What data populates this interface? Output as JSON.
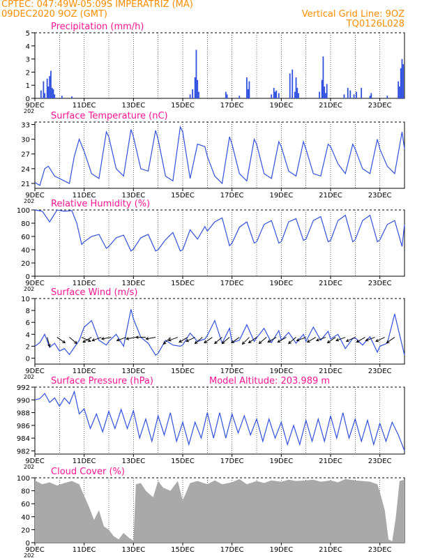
{
  "header": {
    "line1_left": "CPTEC:  047:49W-05:09S  IMPERATRIZ (MA)",
    "line2_left": "09DEC2020 9OZ (GMT)",
    "line1_right": "Vertical Grid Line: 9OZ",
    "line2_right": "TQ0126L028"
  },
  "colors": {
    "header": "#ff8c00",
    "title": "#ff1493",
    "series": "#3050e0",
    "cloud": "#a9a9a9",
    "axis": "#000000",
    "grid": "#000000",
    "arrow": "#000000"
  },
  "x_axis": {
    "range_days": [
      9,
      24
    ],
    "tick_days": [
      9,
      11,
      13,
      15,
      17,
      19,
      21,
      23
    ],
    "tick_labels": [
      "9DEC",
      "11DEC",
      "13DEC",
      "15DEC",
      "17DEC",
      "19DEC",
      "21DEC",
      "23DEC"
    ],
    "partial_label": "202"
  },
  "chart_data": [
    {
      "type": "bar",
      "title": "Precipitation (mm/h)",
      "ylim": [
        0,
        5
      ],
      "yticks": [
        0,
        1,
        2,
        3,
        4,
        5
      ],
      "x": [
        9.25,
        9.35,
        9.4,
        9.5,
        9.55,
        9.6,
        9.65,
        9.7,
        9.75,
        9.8,
        10.1,
        10.5,
        15.3,
        15.4,
        15.5,
        15.55,
        15.6,
        15.65,
        16.75,
        16.8,
        17.3,
        17.6,
        17.65,
        17.7,
        18.6,
        18.7,
        18.75,
        18.8,
        18.9,
        19.35,
        19.45,
        19.55,
        19.6,
        19.65,
        19.7,
        20.55,
        20.65,
        20.7,
        20.75,
        20.8,
        20.85,
        21.55,
        21.7,
        21.8,
        21.95,
        22.05,
        22.25,
        22.6,
        22.65,
        23.3,
        23.75,
        23.8,
        23.85,
        23.9,
        23.95
      ],
      "values": [
        0.6,
        1.3,
        0.4,
        1.5,
        0.9,
        1.7,
        2.1,
        0.8,
        0.7,
        0.3,
        0.2,
        0.15,
        0.3,
        0.7,
        1.6,
        3.7,
        1.4,
        0.5,
        0.5,
        0.3,
        0.2,
        1.6,
        0.7,
        1.3,
        0.3,
        0.8,
        0.5,
        0.6,
        0.4,
        1.9,
        2.2,
        0.5,
        1.6,
        0.8,
        0.4,
        0.5,
        1.4,
        3.2,
        0.9,
        0.4,
        1.1,
        0.3,
        0.8,
        0.6,
        0.3,
        0.5,
        0.8,
        0.2,
        0.4,
        0.2,
        1.3,
        0.9,
        2.3,
        3.0,
        2.6
      ]
    },
    {
      "type": "line",
      "title": "Surface Temperature (nC)",
      "ylim": [
        20,
        33.5
      ],
      "yticks": [
        21,
        24,
        27,
        30,
        33
      ],
      "x": [
        9.0,
        9.2,
        9.4,
        9.55,
        9.8,
        10.0,
        10.2,
        10.4,
        10.6,
        10.8,
        11.0,
        11.3,
        11.6,
        11.9,
        12.0,
        12.3,
        12.6,
        12.9,
        13.0,
        13.3,
        13.6,
        13.9,
        14.0,
        14.3,
        14.6,
        14.9,
        15.0,
        15.3,
        15.6,
        15.9,
        16.0,
        16.3,
        16.6,
        16.9,
        17.0,
        17.3,
        17.6,
        17.9,
        18.0,
        18.3,
        18.6,
        18.9,
        19.0,
        19.3,
        19.6,
        19.9,
        20.0,
        20.3,
        20.6,
        20.9,
        21.0,
        21.3,
        21.6,
        21.9,
        22.0,
        22.3,
        22.6,
        22.9,
        23.0,
        23.3,
        23.6,
        23.9,
        24.0
      ],
      "values": [
        21.2,
        20.6,
        24.0,
        24.5,
        22.5,
        22.0,
        21.5,
        21.0,
        26.5,
        30.0,
        27.5,
        23.0,
        22.0,
        31.5,
        30.5,
        24.0,
        22.5,
        32.0,
        30.5,
        24.0,
        23.5,
        31.8,
        30.0,
        22.5,
        21.5,
        32.5,
        31.5,
        22.0,
        29.0,
        28.5,
        26.5,
        22.5,
        21.0,
        30.5,
        29.0,
        23.0,
        21.5,
        30.0,
        29.0,
        23.0,
        22.0,
        29.5,
        28.5,
        23.5,
        22.5,
        29.5,
        28.0,
        23.0,
        22.5,
        29.0,
        28.5,
        25.0,
        23.0,
        29.0,
        28.0,
        24.0,
        23.0,
        30.0,
        28.0,
        24.5,
        23.0,
        31.5,
        28.0
      ]
    },
    {
      "type": "line",
      "title": "Relative Humidity (%)",
      "ylim": [
        0,
        100
      ],
      "yticks": [
        0,
        20,
        40,
        60,
        80,
        100
      ],
      "x": [
        9.0,
        9.3,
        9.6,
        9.9,
        10.2,
        10.5,
        10.7,
        10.9,
        11.0,
        11.3,
        11.6,
        11.9,
        12.0,
        12.3,
        12.6,
        12.9,
        13.0,
        13.3,
        13.6,
        13.9,
        14.0,
        14.3,
        14.6,
        14.9,
        15.0,
        15.3,
        15.6,
        15.9,
        16.0,
        16.3,
        16.6,
        16.9,
        17.0,
        17.3,
        17.6,
        17.9,
        18.0,
        18.3,
        18.6,
        18.9,
        19.0,
        19.3,
        19.6,
        19.9,
        20.0,
        20.3,
        20.6,
        20.9,
        21.0,
        21.3,
        21.6,
        21.9,
        22.0,
        22.3,
        22.6,
        22.9,
        23.0,
        23.3,
        23.6,
        23.9,
        24.0
      ],
      "values": [
        100,
        98,
        82,
        100,
        98,
        99,
        80,
        48,
        52,
        60,
        63,
        42,
        45,
        58,
        62,
        38,
        41,
        58,
        63,
        38,
        40,
        55,
        66,
        38,
        40,
        70,
        56,
        75,
        68,
        82,
        88,
        46,
        50,
        74,
        82,
        50,
        52,
        78,
        84,
        50,
        52,
        82,
        87,
        54,
        56,
        84,
        90,
        52,
        54,
        84,
        92,
        52,
        55,
        84,
        92,
        52,
        55,
        78,
        84,
        45,
        78
      ]
    },
    {
      "type": "line",
      "title": "Surface Wind (m/s)",
      "ylim": [
        -1,
        10
      ],
      "yticks": [
        0,
        2,
        4,
        6,
        8,
        10
      ],
      "x": [
        9.0,
        9.2,
        9.4,
        9.6,
        9.8,
        10.0,
        10.2,
        10.4,
        10.6,
        10.8,
        11.0,
        11.3,
        11.6,
        11.9,
        12.0,
        12.3,
        12.6,
        12.9,
        13.0,
        13.3,
        13.6,
        13.9,
        14.0,
        14.3,
        14.6,
        14.9,
        15.0,
        15.3,
        15.6,
        15.9,
        16.0,
        16.3,
        16.6,
        16.9,
        17.0,
        17.3,
        17.6,
        17.9,
        18.0,
        18.3,
        18.6,
        18.9,
        19.0,
        19.3,
        19.6,
        19.9,
        20.0,
        20.3,
        20.6,
        20.9,
        21.0,
        21.3,
        21.6,
        21.9,
        22.0,
        22.3,
        22.6,
        22.9,
        23.0,
        23.3,
        23.6,
        23.9,
        24.0
      ],
      "values": [
        2.0,
        2.6,
        4.0,
        1.8,
        2.5,
        1.2,
        1.6,
        0.6,
        1.8,
        3.0,
        5.2,
        6.3,
        3.0,
        2.2,
        2.8,
        4.0,
        2.0,
        8.2,
        6.6,
        3.5,
        2.5,
        0.5,
        0.8,
        3.0,
        2.2,
        2.0,
        2.2,
        4.2,
        2.8,
        3.2,
        3.8,
        6.3,
        2.5,
        5.0,
        2.6,
        3.0,
        5.6,
        2.8,
        3.4,
        5.0,
        2.6,
        4.6,
        3.0,
        4.3,
        2.5,
        4.0,
        2.8,
        5.2,
        3.0,
        4.5,
        3.2,
        4.0,
        1.6,
        3.3,
        3.4,
        2.2,
        3.6,
        1.0,
        2.0,
        2.5,
        7.4,
        2.2,
        0.5
      ],
      "arrow_x": [
        9.5,
        9.9,
        10.4,
        10.9,
        11.3,
        11.7,
        12.1,
        12.7,
        13.1,
        13.5,
        13.9,
        14.5,
        14.8,
        15.2,
        15.5,
        15.8,
        16.2,
        16.6,
        16.9,
        17.3,
        17.7,
        18.0,
        18.4,
        18.8,
        19.2,
        19.6,
        20.0,
        20.4,
        20.8,
        21.2,
        21.6,
        22.0,
        22.4,
        22.8,
        23.2,
        23.6
      ],
      "arrow_dir_deg": [
        75,
        35,
        40,
        25,
        150,
        160,
        170,
        160,
        170,
        180,
        170,
        135,
        160,
        150,
        155,
        140,
        145,
        140,
        140,
        145,
        135,
        145,
        140,
        150,
        150,
        140,
        160,
        150,
        160,
        145,
        160,
        155,
        150,
        160,
        155,
        145
      ]
    },
    {
      "type": "line",
      "title": "Surface Pressure (hPa)",
      "annotation": "Model Altitude: 203.989 m",
      "ylim": [
        981.5,
        992
      ],
      "yticks": [
        982,
        984,
        986,
        988,
        990,
        992
      ],
      "x": [
        9.0,
        9.2,
        9.4,
        9.6,
        9.8,
        10.0,
        10.2,
        10.4,
        10.6,
        10.8,
        11.0,
        11.25,
        11.5,
        11.75,
        12.0,
        12.25,
        12.5,
        12.75,
        13.0,
        13.25,
        13.5,
        13.75,
        14.0,
        14.25,
        14.5,
        14.75,
        15.0,
        15.25,
        15.5,
        15.75,
        16.0,
        16.25,
        16.5,
        16.75,
        17.0,
        17.25,
        17.5,
        17.75,
        18.0,
        18.25,
        18.5,
        18.75,
        19.0,
        19.25,
        19.5,
        19.75,
        20.0,
        20.25,
        20.5,
        20.75,
        21.0,
        21.25,
        21.5,
        21.75,
        22.0,
        22.25,
        22.5,
        22.75,
        23.0,
        23.25,
        23.5,
        23.75,
        24.0
      ],
      "values": [
        990.0,
        990.2,
        991.0,
        989.6,
        990.3,
        989.0,
        990.3,
        989.4,
        991.3,
        987.8,
        988.6,
        985.5,
        987.8,
        985.0,
        988.2,
        985.5,
        988.5,
        985.5,
        988.3,
        984.0,
        987.0,
        983.5,
        987.5,
        984.5,
        988.0,
        983.5,
        986.5,
        983.0,
        986.5,
        984.0,
        988.0,
        984.0,
        988.0,
        984.0,
        987.8,
        984.8,
        987.5,
        984.5,
        987.0,
        983.5,
        987.0,
        984.0,
        986.5,
        983.0,
        986.0,
        983.0,
        986.8,
        983.5,
        987.0,
        983.5,
        987.5,
        984.0,
        988.0,
        984.0,
        987.0,
        983.5,
        986.8,
        983.0,
        986.3,
        983.5,
        986.5,
        984.5,
        982.0
      ]
    },
    {
      "type": "area",
      "title": "Cloud Cover (%)",
      "ylim": [
        0,
        100
      ],
      "yticks": [
        0,
        20,
        40,
        60,
        80,
        100
      ],
      "x": [
        9.0,
        9.3,
        9.6,
        9.9,
        10.2,
        10.5,
        10.8,
        11.0,
        11.2,
        11.4,
        11.6,
        11.8,
        12.0,
        12.2,
        12.4,
        12.6,
        12.8,
        13.0,
        13.1,
        13.3,
        13.5,
        13.8,
        14.0,
        14.2,
        14.5,
        14.8,
        15.0,
        15.3,
        15.6,
        16.0,
        16.3,
        16.6,
        17.0,
        17.3,
        17.6,
        18.0,
        18.3,
        18.6,
        19.0,
        19.3,
        19.6,
        20.0,
        20.3,
        20.6,
        21.0,
        21.3,
        21.6,
        22.0,
        22.3,
        22.6,
        22.9,
        23.0,
        23.2,
        23.35,
        23.5,
        23.65,
        23.8,
        24.0
      ],
      "values": [
        96,
        90,
        93,
        88,
        92,
        95,
        90,
        72,
        55,
        35,
        50,
        25,
        20,
        10,
        5,
        15,
        8,
        3,
        90,
        92,
        80,
        70,
        95,
        85,
        80,
        95,
        65,
        92,
        95,
        90,
        96,
        90,
        93,
        98,
        90,
        95,
        92,
        96,
        94,
        97,
        95,
        96,
        97,
        94,
        96,
        93,
        98,
        96,
        95,
        94,
        90,
        78,
        50,
        5,
        2,
        40,
        95,
        97
      ]
    }
  ]
}
